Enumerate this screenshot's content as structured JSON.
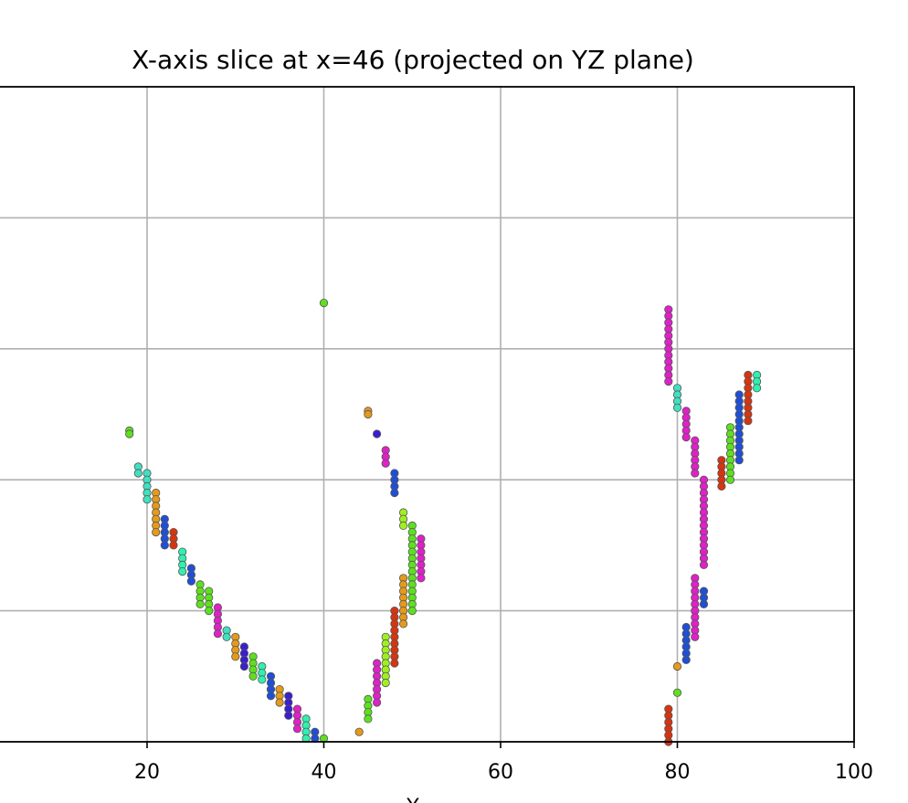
{
  "chart_data": {
    "type": "scatter",
    "title": "X-axis slice at x=46 (projected on YZ plane)",
    "xlabel": "Y",
    "ylabel": "",
    "xlim": [
      0,
      100
    ],
    "ylim": [
      0,
      100
    ],
    "x_ticks": [
      20,
      40,
      60,
      80,
      100
    ],
    "y_gridlines": [
      20,
      40,
      60,
      80
    ],
    "grid": true,
    "colors": {
      "orange": "#e59a1a",
      "red": "#d8340f",
      "blue": "#1f4fd6",
      "indigo": "#3a1fd0",
      "magenta": "#e020c8",
      "green": "#5ee020",
      "lime": "#a0f020",
      "cyan": "#30f0b0",
      "teal": "#40e0c0"
    },
    "series": [
      {
        "color": "green",
        "points": [
          [
            18,
            47.5
          ],
          [
            18,
            47
          ]
        ]
      },
      {
        "color": "teal",
        "points": [
          [
            19,
            42
          ],
          [
            19,
            41
          ],
          [
            20,
            41
          ],
          [
            20,
            40
          ],
          [
            20,
            39
          ],
          [
            20,
            38
          ],
          [
            20,
            37
          ]
        ]
      },
      {
        "color": "orange",
        "points": [
          [
            21,
            38
          ],
          [
            21,
            37
          ],
          [
            21,
            36
          ],
          [
            21,
            35
          ],
          [
            21,
            34
          ],
          [
            21,
            33
          ],
          [
            21,
            32
          ]
        ]
      },
      {
        "color": "blue",
        "points": [
          [
            22,
            34
          ],
          [
            22,
            33
          ],
          [
            22,
            32
          ],
          [
            22,
            31
          ],
          [
            22,
            30
          ]
        ]
      },
      {
        "color": "red",
        "points": [
          [
            23,
            32
          ],
          [
            23,
            31
          ],
          [
            23,
            30
          ]
        ]
      },
      {
        "color": "cyan",
        "points": [
          [
            24,
            29
          ],
          [
            24,
            28
          ],
          [
            24,
            27
          ],
          [
            24,
            26
          ]
        ]
      },
      {
        "color": "blue",
        "points": [
          [
            25,
            26.5
          ],
          [
            25,
            25.5
          ],
          [
            25,
            24.5
          ]
        ]
      },
      {
        "color": "green",
        "points": [
          [
            26,
            24
          ],
          [
            26,
            23
          ],
          [
            26,
            22
          ],
          [
            26,
            21
          ],
          [
            27,
            23
          ],
          [
            27,
            22
          ],
          [
            27,
            21
          ],
          [
            27,
            20
          ]
        ]
      },
      {
        "color": "magenta",
        "points": [
          [
            28,
            20.5
          ],
          [
            28,
            19.5
          ],
          [
            28,
            18.5
          ],
          [
            28,
            17.5
          ],
          [
            28,
            16.5
          ]
        ]
      },
      {
        "color": "teal",
        "points": [
          [
            29,
            17
          ],
          [
            29,
            16
          ]
        ]
      },
      {
        "color": "orange",
        "points": [
          [
            30,
            16
          ],
          [
            30,
            15
          ],
          [
            30,
            14
          ],
          [
            30,
            13
          ]
        ]
      },
      {
        "color": "indigo",
        "points": [
          [
            31,
            14.5
          ],
          [
            31,
            13.5
          ],
          [
            31,
            12.5
          ],
          [
            31,
            11.5
          ]
        ]
      },
      {
        "color": "green",
        "points": [
          [
            32,
            13
          ],
          [
            32,
            12
          ],
          [
            32,
            11
          ],
          [
            32,
            10
          ]
        ]
      },
      {
        "color": "cyan",
        "points": [
          [
            33,
            11.5
          ],
          [
            33,
            10.5
          ],
          [
            33,
            9.5
          ]
        ]
      },
      {
        "color": "blue",
        "points": [
          [
            34,
            10
          ],
          [
            34,
            9
          ],
          [
            34,
            8
          ],
          [
            34,
            7
          ]
        ]
      },
      {
        "color": "orange",
        "points": [
          [
            35,
            8
          ],
          [
            35,
            7
          ],
          [
            35,
            6
          ]
        ]
      },
      {
        "color": "indigo",
        "points": [
          [
            36,
            7
          ],
          [
            36,
            6
          ],
          [
            36,
            5
          ],
          [
            36,
            4
          ]
        ]
      },
      {
        "color": "magenta",
        "points": [
          [
            37,
            5
          ],
          [
            37,
            4
          ],
          [
            37,
            3
          ],
          [
            37,
            2
          ]
        ]
      },
      {
        "color": "cyan",
        "points": [
          [
            38,
            3.5
          ],
          [
            38,
            2.5
          ],
          [
            38,
            1.5
          ],
          [
            38,
            0.5
          ]
        ]
      },
      {
        "color": "blue",
        "points": [
          [
            39,
            1.5
          ],
          [
            39,
            0.5
          ]
        ]
      },
      {
        "color": "green",
        "points": [
          [
            40,
            0.5
          ],
          [
            40,
            67
          ]
        ]
      },
      {
        "color": "orange",
        "points": [
          [
            44,
            1.5
          ],
          [
            45,
            50.5
          ],
          [
            45,
            50
          ]
        ]
      },
      {
        "color": "green",
        "points": [
          [
            45,
            6.5
          ],
          [
            45,
            5.5
          ],
          [
            45,
            4.5
          ],
          [
            45,
            3.5
          ]
        ]
      },
      {
        "color": "indigo",
        "points": [
          [
            46,
            47
          ]
        ]
      },
      {
        "color": "magenta",
        "points": [
          [
            46,
            12
          ],
          [
            46,
            11
          ],
          [
            46,
            10
          ],
          [
            46,
            9
          ],
          [
            46,
            8
          ],
          [
            46,
            7
          ],
          [
            46,
            6
          ]
        ]
      },
      {
        "color": "magenta",
        "points": [
          [
            47,
            44.5
          ],
          [
            47,
            43.5
          ],
          [
            47,
            42.5
          ]
        ]
      },
      {
        "color": "lime",
        "points": [
          [
            47,
            16
          ],
          [
            47,
            15
          ],
          [
            47,
            14
          ],
          [
            47,
            13
          ],
          [
            47,
            12
          ],
          [
            47,
            11
          ],
          [
            47,
            10
          ],
          [
            47,
            9
          ]
        ]
      },
      {
        "color": "blue",
        "points": [
          [
            48,
            41
          ],
          [
            48,
            40
          ],
          [
            48,
            39
          ],
          [
            48,
            38
          ]
        ]
      },
      {
        "color": "red",
        "points": [
          [
            48,
            20
          ],
          [
            48,
            19
          ],
          [
            48,
            18
          ],
          [
            48,
            17
          ],
          [
            48,
            16
          ],
          [
            48,
            15
          ],
          [
            48,
            14
          ],
          [
            48,
            13
          ],
          [
            48,
            12
          ]
        ]
      },
      {
        "color": "lime",
        "points": [
          [
            49,
            35
          ],
          [
            49,
            34
          ],
          [
            49,
            33
          ]
        ]
      },
      {
        "color": "orange",
        "points": [
          [
            49,
            25
          ],
          [
            49,
            24
          ],
          [
            49,
            23
          ],
          [
            49,
            22
          ],
          [
            49,
            21
          ],
          [
            49,
            20
          ],
          [
            49,
            19
          ],
          [
            49,
            18
          ]
        ]
      },
      {
        "color": "green",
        "points": [
          [
            50,
            33
          ],
          [
            50,
            32
          ],
          [
            50,
            31
          ],
          [
            50,
            30
          ],
          [
            50,
            29
          ],
          [
            50,
            28
          ],
          [
            50,
            27
          ],
          [
            50,
            26
          ],
          [
            50,
            25
          ],
          [
            50,
            24
          ],
          [
            50,
            23
          ],
          [
            50,
            22
          ],
          [
            50,
            21
          ],
          [
            50,
            20
          ]
        ]
      },
      {
        "color": "magenta",
        "points": [
          [
            51,
            31
          ],
          [
            51,
            30
          ],
          [
            51,
            29
          ],
          [
            51,
            28
          ],
          [
            51,
            27
          ],
          [
            51,
            26
          ],
          [
            51,
            25
          ]
        ]
      },
      {
        "color": "red",
        "points": [
          [
            79,
            5
          ],
          [
            79,
            4
          ],
          [
            79,
            3
          ],
          [
            79,
            2
          ],
          [
            79,
            1
          ],
          [
            79,
            0
          ]
        ]
      },
      {
        "color": "magenta",
        "points": [
          [
            79,
            66
          ],
          [
            79,
            65
          ],
          [
            79,
            64
          ],
          [
            79,
            63
          ],
          [
            79,
            62
          ],
          [
            79,
            61
          ],
          [
            79,
            60
          ],
          [
            79,
            59
          ],
          [
            79,
            58
          ],
          [
            79,
            57
          ],
          [
            79,
            56
          ],
          [
            79,
            55
          ]
        ]
      },
      {
        "color": "orange",
        "points": [
          [
            80,
            11.5
          ]
        ]
      },
      {
        "color": "green",
        "points": [
          [
            80,
            7.5
          ]
        ]
      },
      {
        "color": "teal",
        "points": [
          [
            80,
            54
          ],
          [
            80,
            53
          ],
          [
            80,
            52
          ],
          [
            80,
            51
          ]
        ]
      },
      {
        "color": "magenta",
        "points": [
          [
            81,
            50.5
          ],
          [
            81,
            49.5
          ],
          [
            81,
            48.5
          ],
          [
            81,
            47.5
          ],
          [
            81,
            46.5
          ]
        ]
      },
      {
        "color": "blue",
        "points": [
          [
            81,
            17.5
          ],
          [
            81,
            16.5
          ],
          [
            81,
            15.5
          ],
          [
            81,
            14.5
          ],
          [
            81,
            13.5
          ],
          [
            81,
            12.5
          ]
        ]
      },
      {
        "color": "magenta",
        "points": [
          [
            82,
            46
          ],
          [
            82,
            45
          ],
          [
            82,
            44
          ],
          [
            82,
            43
          ],
          [
            82,
            42
          ],
          [
            82,
            41
          ]
        ]
      },
      {
        "color": "magenta",
        "points": [
          [
            82,
            25
          ],
          [
            82,
            24
          ],
          [
            82,
            23
          ],
          [
            82,
            22
          ],
          [
            82,
            21
          ],
          [
            82,
            20
          ],
          [
            82,
            19
          ],
          [
            82,
            18
          ],
          [
            82,
            17
          ],
          [
            82,
            16
          ]
        ]
      },
      {
        "color": "magenta",
        "points": [
          [
            83,
            40
          ],
          [
            83,
            39
          ],
          [
            83,
            38
          ],
          [
            83,
            37
          ],
          [
            83,
            36
          ],
          [
            83,
            35
          ],
          [
            83,
            34
          ],
          [
            83,
            33
          ],
          [
            83,
            32
          ],
          [
            83,
            31
          ],
          [
            83,
            30
          ],
          [
            83,
            29
          ],
          [
            83,
            28
          ],
          [
            83,
            27
          ]
        ]
      },
      {
        "color": "blue",
        "points": [
          [
            83,
            23
          ],
          [
            83,
            22
          ],
          [
            83,
            21
          ]
        ]
      },
      {
        "color": "red",
        "points": [
          [
            85,
            43
          ],
          [
            85,
            42
          ],
          [
            85,
            41
          ],
          [
            85,
            40
          ],
          [
            85,
            39
          ]
        ]
      },
      {
        "color": "green",
        "points": [
          [
            86,
            48
          ],
          [
            86,
            47
          ],
          [
            86,
            46
          ],
          [
            86,
            45
          ],
          [
            86,
            44
          ],
          [
            86,
            43
          ],
          [
            86,
            42
          ],
          [
            86,
            41
          ],
          [
            86,
            40
          ]
        ]
      },
      {
        "color": "blue",
        "points": [
          [
            87,
            53
          ],
          [
            87,
            52
          ],
          [
            87,
            51
          ],
          [
            87,
            50
          ],
          [
            87,
            49
          ],
          [
            87,
            48
          ],
          [
            87,
            47
          ],
          [
            87,
            46
          ],
          [
            87,
            45
          ],
          [
            87,
            44
          ],
          [
            87,
            43
          ]
        ]
      },
      {
        "color": "red",
        "points": [
          [
            88,
            56
          ],
          [
            88,
            55
          ],
          [
            88,
            54
          ],
          [
            88,
            53
          ],
          [
            88,
            52
          ],
          [
            88,
            51
          ],
          [
            88,
            50
          ],
          [
            88,
            49
          ]
        ]
      },
      {
        "color": "cyan",
        "points": [
          [
            89,
            56
          ],
          [
            89,
            55
          ],
          [
            89,
            54
          ]
        ]
      }
    ]
  }
}
